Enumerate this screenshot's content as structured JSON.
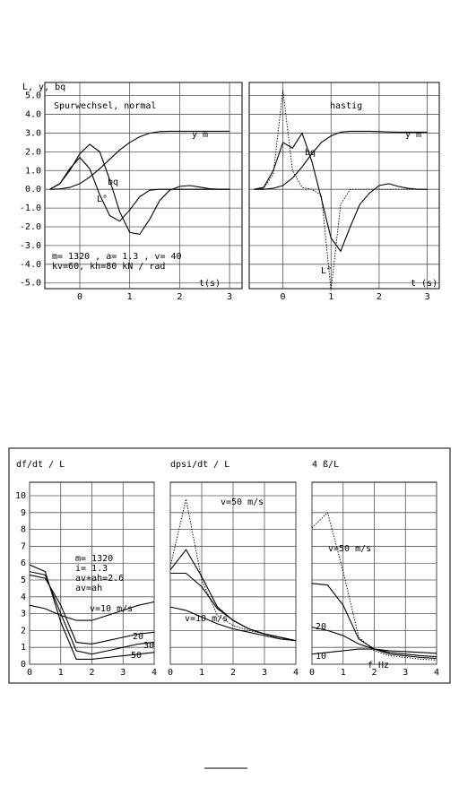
{
  "chart_data": [
    {
      "type": "line",
      "title": "Spurwechsel, normal",
      "ylabel": "L, y, bq",
      "x": [
        -0.6,
        -0.4,
        -0.2,
        0,
        0.2,
        0.4,
        0.6,
        0.8,
        1.0,
        1.2,
        1.4,
        1.6,
        1.8,
        2.0,
        2.2,
        2.4,
        2.6,
        2.8,
        3.0
      ],
      "series": [
        {
          "name": "y m",
          "color": "#000000",
          "dash": "solid",
          "values": [
            0,
            0.02,
            0.1,
            0.3,
            0.65,
            1.1,
            1.6,
            2.1,
            2.5,
            2.8,
            3.0,
            3.08,
            3.1,
            3.1,
            3.1,
            3.1,
            3.1,
            3.1,
            3.1
          ]
        },
        {
          "name": "L°",
          "color": "#000000",
          "dash": "solid",
          "values": [
            0,
            0.3,
            1.0,
            1.9,
            2.4,
            2.0,
            0.5,
            -1.2,
            -2.3,
            -2.4,
            -1.6,
            -0.6,
            -0.05,
            0.15,
            0.2,
            0.12,
            0.03,
            0,
            0
          ]
        },
        {
          "name": "bq",
          "color": "#000000",
          "dash": "solid",
          "values": [
            0,
            0.3,
            1.1,
            1.7,
            1.1,
            -0.3,
            -1.4,
            -1.7,
            -1.1,
            -0.4,
            -0.05,
            0,
            0,
            0,
            0,
            0,
            0,
            0,
            0
          ]
        }
      ],
      "annotations": [
        "m= 1320 , a= 1.3 , v= 40",
        "kv=60, kh=80 kN / rad",
        "t(s)"
      ],
      "xlim": [
        -0.7,
        3.25
      ],
      "xticks": [
        0,
        1,
        2,
        3
      ],
      "ylim": [
        -5.3,
        5.7
      ],
      "yticks": [
        {
          "value": 5,
          "label": "5.0"
        },
        {
          "value": 4,
          "label": "4.0"
        },
        {
          "value": 3,
          "label": "3.0"
        },
        {
          "value": 2,
          "label": "2.0"
        },
        {
          "value": 1,
          "label": "1.0"
        },
        {
          "value": 0,
          "label": "0.0"
        },
        {
          "value": -1,
          "label": "-1.0"
        },
        {
          "value": -2,
          "label": "-2.0"
        },
        {
          "value": -3,
          "label": "-3.0"
        },
        {
          "value": -4,
          "label": "-4.0"
        },
        {
          "value": -5,
          "label": "-5.0"
        }
      ],
      "grid": true
    },
    {
      "type": "line",
      "title": "hastig",
      "sharey": true,
      "x": [
        -0.6,
        -0.4,
        -0.2,
        0,
        0.2,
        0.4,
        0.6,
        0.8,
        1.0,
        1.2,
        1.4,
        1.6,
        1.8,
        2.0,
        2.2,
        2.4,
        2.6,
        2.8,
        3.0
      ],
      "series": [
        {
          "name": "y m",
          "color": "#000000",
          "dash": "solid",
          "values": [
            0,
            0,
            0.05,
            0.2,
            0.6,
            1.2,
            1.9,
            2.5,
            2.85,
            3.05,
            3.1,
            3.1,
            3.1,
            3.08,
            3.06,
            3.05,
            3.05,
            3.05,
            3.05
          ]
        },
        {
          "name": "L°",
          "color": "#000000",
          "dash": "dotted",
          "values": [
            0,
            0.05,
            0.8,
            5.3,
            1.0,
            0.1,
            0,
            -0.3,
            -5.4,
            -0.8,
            0,
            0,
            0,
            0,
            0,
            0,
            0,
            0,
            0
          ]
        },
        {
          "name": "bq",
          "color": "#000000",
          "dash": "solid",
          "values": [
            0,
            0.1,
            1.0,
            2.5,
            2.2,
            3.0,
            1.5,
            -0.5,
            -2.6,
            -3.3,
            -2.0,
            -0.8,
            -0.2,
            0.2,
            0.3,
            0.15,
            0.05,
            0,
            0
          ]
        }
      ],
      "annotations": [
        "t (s)"
      ],
      "xlim": [
        -0.7,
        3.25
      ],
      "xticks": [
        0,
        1,
        2,
        3
      ],
      "grid": true
    },
    {
      "type": "line",
      "ylabel": "df/dt / L",
      "x": [
        0,
        0.5,
        1,
        1.5,
        2,
        2.5,
        3,
        3.5,
        4
      ],
      "series": [
        {
          "name": "v=10 m/s",
          "color": "#000000",
          "dash": "solid",
          "values": [
            3.5,
            3.3,
            2.9,
            2.6,
            2.6,
            2.9,
            3.2,
            3.5,
            3.7
          ]
        },
        {
          "name": "20",
          "color": "#000000",
          "dash": "solid",
          "values": [
            5.3,
            5.1,
            3.5,
            1.3,
            1.2,
            1.4,
            1.6,
            1.8,
            1.9
          ]
        },
        {
          "name": "30",
          "color": "#000000",
          "dash": "solid",
          "values": [
            5.5,
            5.3,
            3.0,
            0.8,
            0.6,
            0.8,
            1.0,
            1.2,
            1.3
          ]
        },
        {
          "name": "50",
          "color": "#000000",
          "dash": "solid",
          "values": [
            5.9,
            5.5,
            2.5,
            0.3,
            0.3,
            0.4,
            0.5,
            0.6,
            0.7
          ]
        }
      ],
      "annotations": [
        "m= 1320",
        "i= 1.3",
        "av+ah=2.6",
        "av=ah"
      ],
      "xlim": [
        0,
        4
      ],
      "xticks": [
        0,
        1,
        2,
        3,
        4
      ],
      "ylim": [
        0,
        10.8
      ],
      "yticks": [
        0,
        1,
        2,
        3,
        4,
        5,
        6,
        7,
        8,
        9,
        10
      ],
      "grid": true
    },
    {
      "type": "line",
      "ylabel": "dpsi/dt / L",
      "sharey": true,
      "x": [
        0,
        0.5,
        1,
        1.5,
        2,
        2.5,
        3,
        3.5,
        4
      ],
      "series": [
        {
          "name": "v=10 m/s",
          "color": "#000000",
          "dash": "solid",
          "values": [
            3.4,
            3.2,
            2.8,
            2.4,
            2.1,
            1.9,
            1.7,
            1.5,
            1.4
          ]
        },
        {
          "color": "#000000",
          "dash": "solid",
          "values": [
            5.4,
            5.4,
            4.6,
            3.3,
            2.6,
            2.1,
            1.8,
            1.6,
            1.4
          ]
        },
        {
          "color": "#000000",
          "dash": "solid",
          "values": [
            5.6,
            6.8,
            5.2,
            3.4,
            2.6,
            2.1,
            1.8,
            1.6,
            1.4
          ]
        },
        {
          "name": "v=50 m/s",
          "color": "#000000",
          "dash": "dotted",
          "values": [
            5.8,
            9.8,
            5.0,
            2.9,
            2.3,
            2.0,
            1.8,
            1.5,
            1.4
          ]
        }
      ],
      "xlim": [
        0,
        4
      ],
      "xticks": [
        0,
        1,
        2,
        3,
        4
      ],
      "grid": true
    },
    {
      "type": "line",
      "ylabel": "4 ß/L",
      "sharey": true,
      "x": [
        0,
        0.5,
        1,
        1.5,
        2,
        2.5,
        3,
        3.5,
        4
      ],
      "series": [
        {
          "name": "10",
          "color": "#000000",
          "dash": "solid",
          "values": [
            0.6,
            0.7,
            0.8,
            0.9,
            0.9,
            0.8,
            0.75,
            0.7,
            0.65
          ]
        },
        {
          "name": "20",
          "color": "#000000",
          "dash": "solid",
          "values": [
            2.2,
            2.0,
            1.7,
            1.2,
            0.9,
            0.7,
            0.6,
            0.5,
            0.45
          ]
        },
        {
          "color": "#000000",
          "dash": "solid",
          "values": [
            4.8,
            4.7,
            3.5,
            1.5,
            0.9,
            0.6,
            0.5,
            0.4,
            0.35
          ]
        },
        {
          "name": "v=50 m/s",
          "color": "#000000",
          "dash": "dotted",
          "values": [
            8.1,
            9.0,
            5.5,
            1.6,
            0.8,
            0.5,
            0.4,
            0.3,
            0.25
          ]
        }
      ],
      "annotations": [
        "f Hz"
      ],
      "xlim": [
        0,
        4
      ],
      "xticks": [
        0,
        1,
        2,
        3,
        4
      ],
      "grid": true
    }
  ]
}
